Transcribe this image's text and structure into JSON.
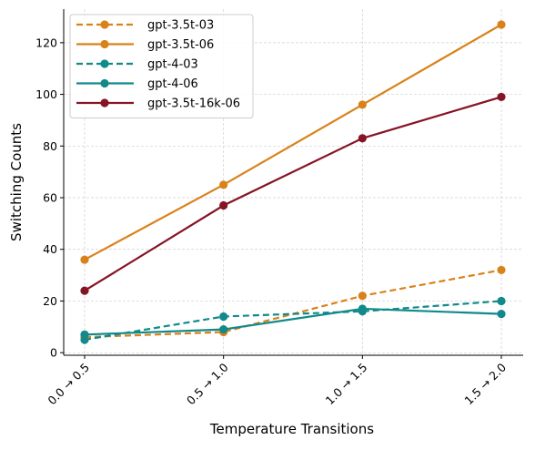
{
  "chart_data": {
    "type": "line",
    "title": "",
    "xlabel": "Temperature Transitions",
    "ylabel": "Switching Counts",
    "categories": [
      "0.0 → 0.5",
      "0.5 → 1.0",
      "1.0 → 1.5",
      "1.5 → 2.0"
    ],
    "ylim": [
      -1,
      133
    ],
    "yticks": [
      0,
      20,
      40,
      60,
      80,
      100,
      120
    ],
    "grid": true,
    "legend_position": "top-left",
    "series": [
      {
        "name": "gpt-3.5t-03",
        "values": [
          6,
          8,
          22,
          32
        ],
        "color": "#d9821a",
        "dashed": true
      },
      {
        "name": "gpt-3.5t-06",
        "values": [
          36,
          65,
          96,
          127
        ],
        "color": "#d9821a",
        "dashed": false
      },
      {
        "name": "gpt-4-03",
        "values": [
          5,
          14,
          16,
          20
        ],
        "color": "#12898a",
        "dashed": true
      },
      {
        "name": "gpt-4-06",
        "values": [
          7,
          9,
          17,
          15
        ],
        "color": "#12898a",
        "dashed": false
      },
      {
        "name": "gpt-3.5t-16k-06",
        "values": [
          24,
          57,
          83,
          99
        ],
        "color": "#851424",
        "dashed": false
      }
    ]
  }
}
